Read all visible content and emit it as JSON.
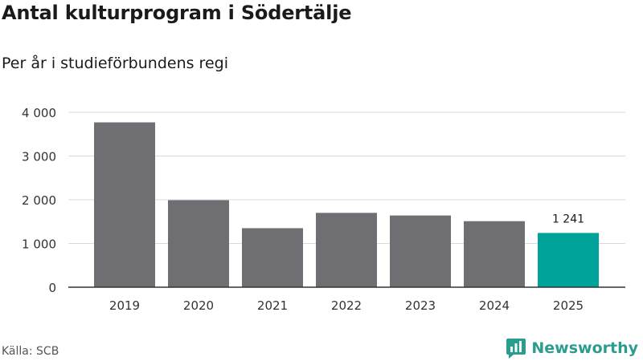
{
  "title": "Antal kulturprogram i Södertälje",
  "subtitle": "Per år i studieförbundens regi",
  "source": "Källa: SCB",
  "brand": {
    "name": "Newsworthy",
    "icon": "newsworthy-logo-icon"
  },
  "colors": {
    "bar": "#6f6e73",
    "highlight": "#00a39a",
    "grid": "#d9d9d9",
    "axis": "#333333"
  },
  "chart_data": {
    "type": "bar",
    "title": "Antal kulturprogram i Södertälje",
    "subtitle": "Per år i studieförbundens regi",
    "categories": [
      "2019",
      "2020",
      "2021",
      "2022",
      "2023",
      "2024",
      "2025"
    ],
    "values": [
      3770,
      1990,
      1350,
      1700,
      1640,
      1510,
      1241
    ],
    "highlight_index": 6,
    "data_labels": {
      "6": "1 241"
    },
    "ylim": [
      0,
      4000
    ],
    "yticks": [
      0,
      1000,
      2000,
      3000,
      4000
    ],
    "ytick_labels": [
      "0",
      "1 000",
      "2 000",
      "3 000",
      "4 000"
    ],
    "grid": true,
    "legend": "none"
  }
}
